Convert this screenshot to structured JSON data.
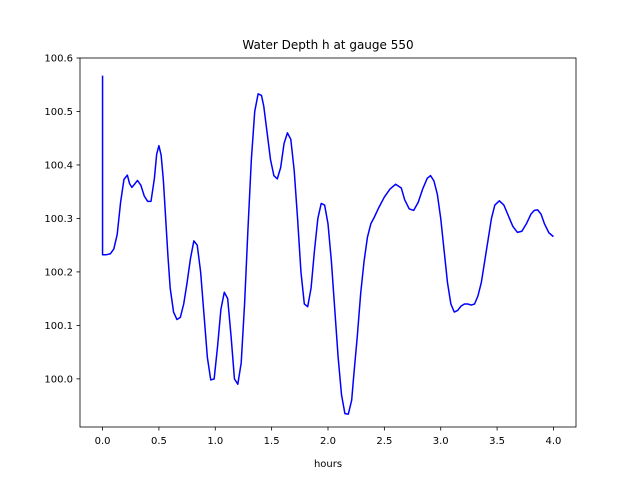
{
  "chart_data": {
    "type": "line",
    "title": "Water Depth h at gauge 550",
    "xlabel": "hours",
    "ylabel": "",
    "xlim": [
      -0.2,
      4.2
    ],
    "ylim": [
      99.91,
      100.6
    ],
    "xticks": [
      0.0,
      0.5,
      1.0,
      1.5,
      2.0,
      2.5,
      3.0,
      3.5,
      4.0
    ],
    "xtick_labels": [
      "0.0",
      "0.5",
      "1.0",
      "1.5",
      "2.0",
      "2.5",
      "3.0",
      "3.5",
      "4.0"
    ],
    "yticks": [
      100.0,
      100.1,
      100.2,
      100.3,
      100.4,
      100.5,
      100.6
    ],
    "ytick_labels": [
      "100.0",
      "100.1",
      "100.2",
      "100.3",
      "100.4",
      "100.5",
      "100.6"
    ],
    "grid": false,
    "series": [
      {
        "color": "#0000ff",
        "x": [
          0.0,
          0.0,
          0.0,
          0.03,
          0.07,
          0.1,
          0.13,
          0.16,
          0.19,
          0.22,
          0.24,
          0.26,
          0.28,
          0.31,
          0.34,
          0.37,
          0.4,
          0.43,
          0.46,
          0.48,
          0.5,
          0.52,
          0.54,
          0.56,
          0.58,
          0.6,
          0.63,
          0.66,
          0.69,
          0.72,
          0.75,
          0.78,
          0.81,
          0.84,
          0.87,
          0.9,
          0.93,
          0.96,
          0.99,
          1.02,
          1.05,
          1.08,
          1.11,
          1.14,
          1.17,
          1.2,
          1.23,
          1.26,
          1.29,
          1.32,
          1.35,
          1.38,
          1.41,
          1.43,
          1.46,
          1.49,
          1.52,
          1.55,
          1.58,
          1.61,
          1.64,
          1.67,
          1.7,
          1.73,
          1.76,
          1.79,
          1.82,
          1.85,
          1.88,
          1.91,
          1.94,
          1.97,
          2.0,
          2.03,
          2.06,
          2.09,
          2.12,
          2.15,
          2.18,
          2.21,
          2.23,
          2.26,
          2.29,
          2.32,
          2.35,
          2.38,
          2.41,
          2.45,
          2.5,
          2.55,
          2.6,
          2.65,
          2.68,
          2.72,
          2.76,
          2.8,
          2.84,
          2.88,
          2.91,
          2.94,
          2.97,
          3.0,
          3.03,
          3.06,
          3.09,
          3.12,
          3.15,
          3.18,
          3.21,
          3.24,
          3.27,
          3.3,
          3.33,
          3.36,
          3.39,
          3.42,
          3.45,
          3.48,
          3.52,
          3.56,
          3.6,
          3.64,
          3.68,
          3.72,
          3.76,
          3.8,
          3.83,
          3.86,
          3.89,
          3.92,
          3.96,
          4.0
        ],
        "y": [
          100.567,
          100.567,
          100.232,
          100.232,
          100.234,
          100.243,
          100.27,
          100.33,
          100.373,
          100.381,
          100.365,
          100.358,
          100.363,
          100.371,
          100.362,
          100.342,
          100.332,
          100.332,
          100.375,
          100.42,
          100.436,
          100.418,
          100.37,
          100.3,
          100.23,
          100.17,
          100.125,
          100.111,
          100.115,
          100.14,
          100.18,
          100.225,
          100.258,
          100.25,
          100.2,
          100.12,
          100.04,
          99.998,
          100.0,
          100.06,
          100.13,
          100.162,
          100.15,
          100.08,
          100.0,
          99.99,
          100.03,
          100.14,
          100.28,
          100.41,
          100.5,
          100.533,
          100.53,
          100.51,
          100.46,
          100.41,
          100.38,
          100.374,
          100.395,
          100.44,
          100.46,
          100.448,
          100.39,
          100.3,
          100.2,
          100.14,
          100.135,
          100.17,
          100.24,
          100.3,
          100.328,
          100.325,
          100.29,
          100.22,
          100.13,
          100.04,
          99.97,
          99.935,
          99.934,
          99.96,
          100.01,
          100.08,
          100.16,
          100.22,
          100.265,
          100.29,
          100.302,
          100.32,
          100.34,
          100.355,
          100.364,
          100.357,
          100.335,
          100.318,
          100.315,
          100.33,
          100.355,
          100.375,
          100.38,
          100.37,
          100.345,
          100.3,
          100.24,
          100.18,
          100.14,
          100.125,
          100.128,
          100.136,
          100.14,
          100.14,
          100.138,
          100.14,
          100.155,
          100.18,
          100.22,
          100.26,
          100.3,
          100.325,
          100.333,
          100.325,
          100.305,
          100.285,
          100.274,
          100.276,
          100.29,
          100.308,
          100.315,
          100.316,
          100.308,
          100.29,
          100.273,
          100.266
        ]
      }
    ]
  }
}
